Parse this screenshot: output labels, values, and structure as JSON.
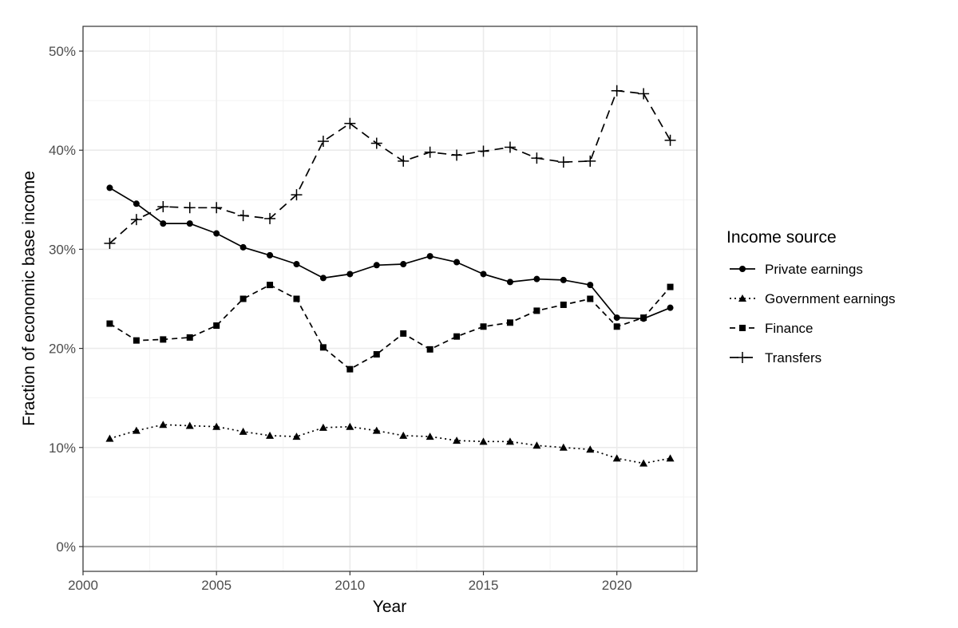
{
  "chart_data": {
    "type": "line",
    "xlabel": "Year",
    "ylabel": "Fraction of economic base income",
    "xlim": [
      2000,
      2023
    ],
    "ylim": [
      -2.5,
      52.5
    ],
    "x_ticks": [
      2000,
      2005,
      2010,
      2015,
      2020
    ],
    "x_tick_labels": [
      "2000",
      "2005",
      "2010",
      "2015",
      "2020"
    ],
    "y_ticks": [
      0,
      10,
      20,
      30,
      40,
      50
    ],
    "y_tick_labels": [
      "0%",
      "10%",
      "20%",
      "30%",
      "40%",
      "50%"
    ],
    "grid": true,
    "legend_title": "Income source",
    "legend_position": "right",
    "x": [
      2001,
      2002,
      2003,
      2004,
      2005,
      2006,
      2007,
      2008,
      2009,
      2010,
      2011,
      2012,
      2013,
      2014,
      2015,
      2016,
      2017,
      2018,
      2019,
      2020,
      2021,
      2022
    ],
    "series": [
      {
        "name": "Private earnings",
        "marker": "circle",
        "dash": "solid",
        "values": [
          36.2,
          34.6,
          32.6,
          32.6,
          31.6,
          30.2,
          29.4,
          28.5,
          27.1,
          27.5,
          28.4,
          28.5,
          29.3,
          28.7,
          27.5,
          26.7,
          27.0,
          26.9,
          26.4,
          23.1,
          23.0,
          24.1
        ]
      },
      {
        "name": "Government earnings",
        "marker": "triangle",
        "dash": "dotted",
        "values": [
          10.9,
          11.7,
          12.3,
          12.2,
          12.1,
          11.6,
          11.2,
          11.1,
          12.0,
          12.1,
          11.7,
          11.2,
          11.1,
          10.7,
          10.6,
          10.6,
          10.2,
          10.0,
          9.8,
          8.9,
          8.4,
          8.9
        ]
      },
      {
        "name": "Finance",
        "marker": "square",
        "dash": "dashed",
        "values": [
          22.5,
          20.8,
          20.9,
          21.1,
          22.3,
          25.0,
          26.4,
          25.0,
          20.1,
          17.9,
          19.4,
          21.5,
          19.9,
          21.2,
          22.2,
          22.6,
          23.8,
          24.4,
          25.0,
          22.2,
          23.1,
          26.2
        ]
      },
      {
        "name": "Transfers",
        "marker": "plus",
        "dash": "longdash",
        "values": [
          30.6,
          33.0,
          34.3,
          34.2,
          34.2,
          33.4,
          33.1,
          35.5,
          40.9,
          42.7,
          40.7,
          38.9,
          39.8,
          39.5,
          39.9,
          40.3,
          39.2,
          38.8,
          38.9,
          46.0,
          45.7,
          41.0
        ]
      }
    ]
  },
  "colors": {
    "line": "#000000",
    "grid_major": "#ebebeb",
    "grid_minor": "#f3f3f3",
    "zero_line": "#a6a6a6",
    "panel_border": "#333333",
    "tick_text": "#4d4d4d"
  }
}
